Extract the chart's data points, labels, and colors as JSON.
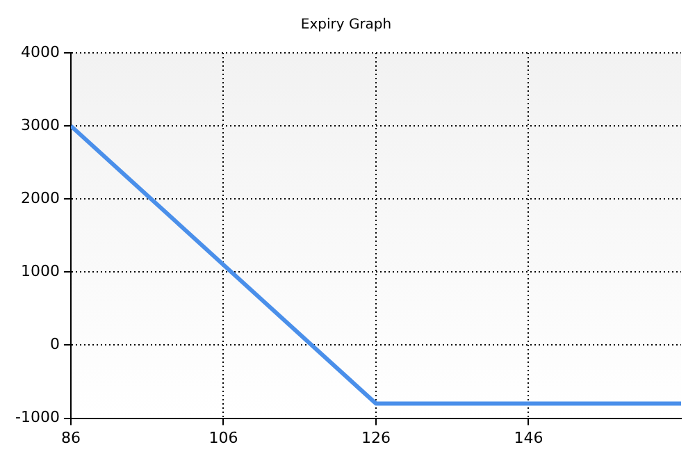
{
  "chart_data": {
    "type": "line",
    "title": "Expiry Graph",
    "x": [
      86,
      126,
      166
    ],
    "series": [
      {
        "color": "#4a8fea",
        "values": [
          3000,
          -800,
          -800
        ]
      }
    ],
    "xlim": [
      86,
      166
    ],
    "xticks": [
      86,
      106,
      126,
      146
    ],
    "ylim": [
      -1000,
      4000
    ],
    "yticks": [
      -1000,
      0,
      1000,
      2000,
      3000,
      4000
    ],
    "grid": true,
    "legend": false,
    "marker": "none",
    "line_style": "solid"
  }
}
